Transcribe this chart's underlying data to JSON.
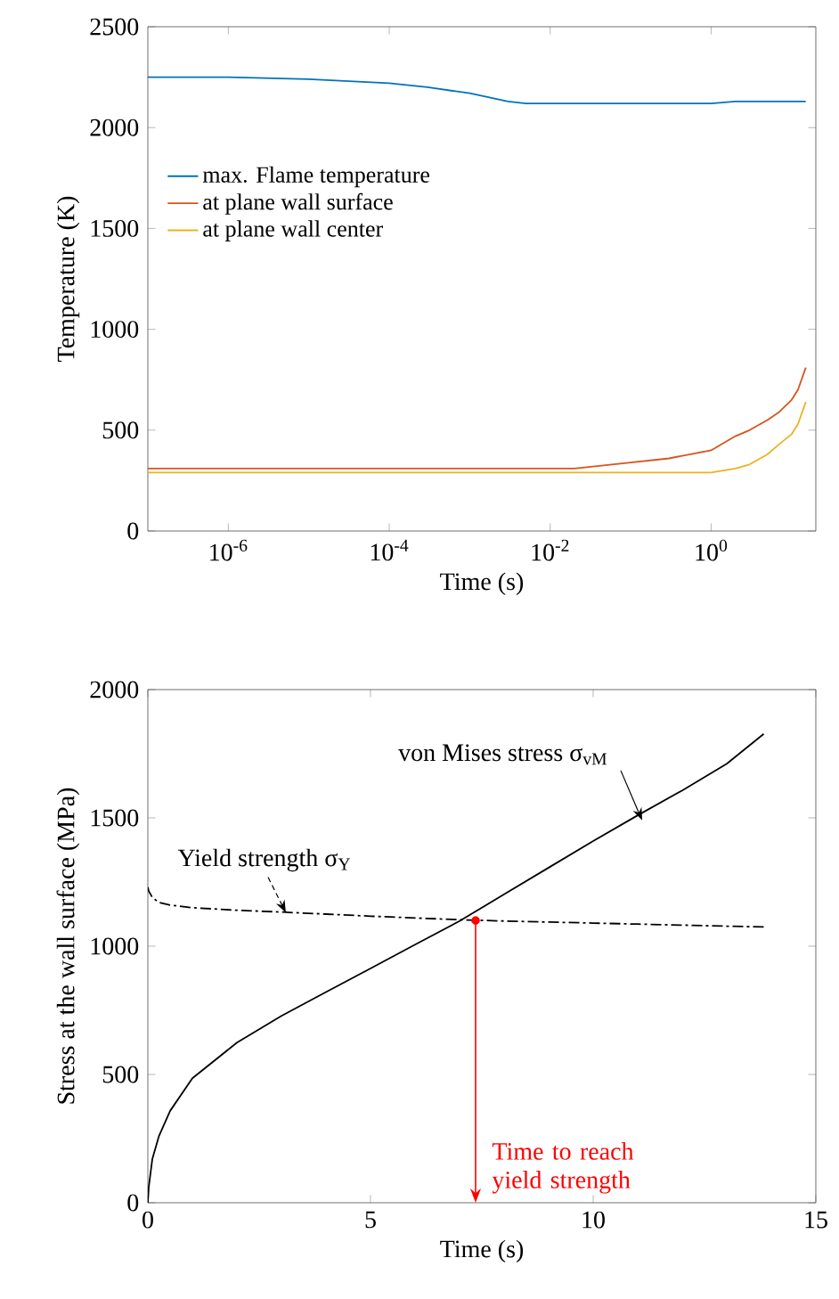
{
  "chart_data": [
    {
      "type": "line",
      "xlabel": "Time (s)",
      "ylabel": "Temperature (K)",
      "log": "x",
      "x": [
        1e-07,
        1e-06,
        1e-05,
        0.0001,
        0.0003,
        0.001,
        0.003,
        0.005,
        0.01,
        0.02,
        0.1,
        0.3,
        1,
        2,
        3,
        5,
        7,
        10,
        12,
        15
      ],
      "series": [
        {
          "name": "max. Flame temperature",
          "color": "#0072bd",
          "values": [
            2250,
            2250,
            2240,
            2220,
            2200,
            2170,
            2130,
            2120,
            2120,
            2120,
            2120,
            2120,
            2120,
            2130,
            2130,
            2130,
            2130,
            2130,
            2130,
            2130
          ]
        },
        {
          "name": "at plane wall surface",
          "color": "#d95319",
          "values": [
            310,
            310,
            310,
            310,
            310,
            310,
            310,
            310,
            310,
            310,
            340,
            360,
            400,
            470,
            500,
            550,
            590,
            650,
            700,
            810
          ]
        },
        {
          "name": "at plane wall center",
          "color": "#edb120",
          "values": [
            290,
            290,
            290,
            290,
            290,
            290,
            290,
            290,
            290,
            290,
            290,
            290,
            290,
            310,
            330,
            380,
            430,
            480,
            530,
            640
          ]
        }
      ],
      "xlim": [
        1e-07,
        20
      ],
      "ylim": [
        0,
        2500
      ],
      "xticks": [
        {
          "value": 1e-06,
          "label": "10$^{-6}$"
        },
        {
          "value": 0.0001,
          "label": "10$^{-4}$"
        },
        {
          "value": 0.01,
          "label": "10$^{-2}$"
        },
        {
          "value": 1,
          "label": "10$^{0}$"
        }
      ],
      "yticks": [
        0,
        500,
        1000,
        1500,
        2000,
        2500
      ],
      "grid": false,
      "legend": "left",
      "marker": "none",
      "line_style": "solid"
    },
    {
      "type": "line",
      "xlabel": "Time (s)",
      "ylabel": "Stress at the wall surface (MPa)",
      "x": [
        0,
        0.02,
        0.1,
        0.25,
        0.5,
        1,
        2,
        3,
        4,
        5,
        6,
        7,
        8,
        9,
        10,
        11,
        12,
        13,
        13.83
      ],
      "series": [
        {
          "color": "#000000",
          "line_style": "solid",
          "values": [
            0,
            60,
            170,
            260,
            358,
            485,
            624,
            728,
            821,
            913,
            1006,
            1098,
            1202,
            1306,
            1410,
            1510,
            1607,
            1711,
            1827
          ]
        },
        {
          "color": "#000000",
          "line_style": "dashdot",
          "values": [
            1230,
            1215,
            1190,
            1170,
            1160,
            1150,
            1140,
            1133,
            1125,
            1117,
            1110,
            1103,
            1098,
            1094,
            1090,
            1086,
            1082,
            1078,
            1075
          ]
        },
        {
          "type": "scatter",
          "color": "#ff0000",
          "marker": "circle",
          "x": [
            7.36
          ],
          "values": [
            1100
          ]
        }
      ],
      "annotations": [
        {
          "text": "von Mises stress σ$_{vM}$",
          "x": 11.1,
          "y": 1490
        },
        {
          "text": "Yield strength σ$_{Y}$",
          "x": 3.1,
          "y": 1130
        },
        "Time to reach yield strength"
      ],
      "xlim": [
        0,
        15
      ],
      "ylim": [
        0,
        2000
      ],
      "xticks": [
        0,
        5,
        10,
        15
      ],
      "yticks": [
        0,
        500,
        1000,
        1500,
        2000
      ],
      "grid": false,
      "legend": false,
      "marker": "none"
    }
  ]
}
